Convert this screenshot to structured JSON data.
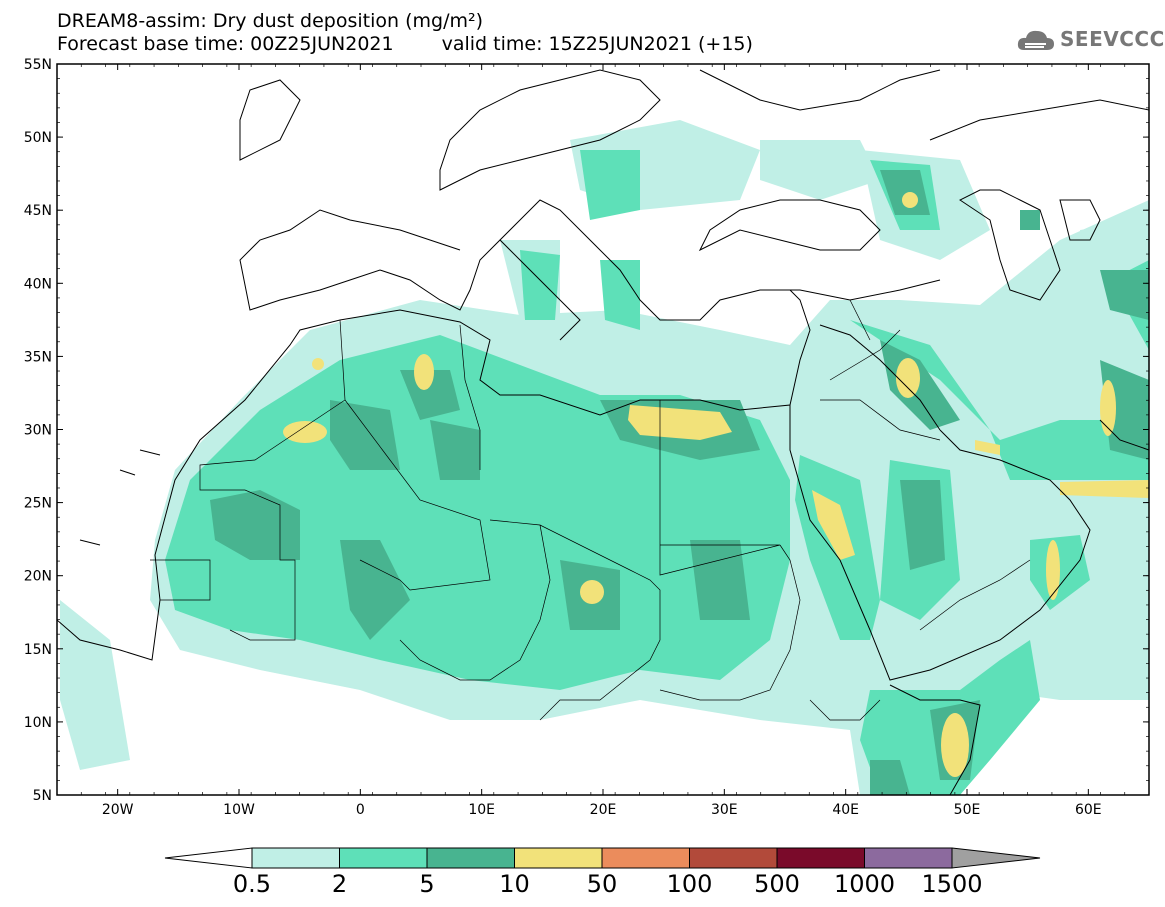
{
  "title": {
    "line1": "DREAM8-assim: Dry dust deposition (mg/m²)",
    "base": "Forecast base time: 00Z25JUN2021",
    "valid": "valid time: 15Z25JUN2021 (+15)"
  },
  "logo": {
    "text": "SEEVCCC",
    "icon": "cloud-logo-icon"
  },
  "map": {
    "lon_range": [
      -25,
      65
    ],
    "lat_range": [
      5,
      55
    ],
    "lat_ticks": [
      "55N",
      "50N",
      "45N",
      "40N",
      "35N",
      "30N",
      "25N",
      "20N",
      "15N",
      "10N",
      "5N"
    ],
    "lon_ticks": [
      "20W",
      "10W",
      "0",
      "10E",
      "20E",
      "30E",
      "40E",
      "50E",
      "60E"
    ]
  },
  "colorbar": {
    "labels": [
      "0.5",
      "2",
      "5",
      "10",
      "50",
      "100",
      "500",
      "1000",
      "1500"
    ],
    "colors": [
      "#c0efe6",
      "#5ee0b8",
      "#48b490",
      "#f2e27a",
      "#eb8c5c",
      "#b24a3a",
      "#7a0a2a",
      "#8c6a9e",
      "#a0a0a0"
    ]
  }
}
